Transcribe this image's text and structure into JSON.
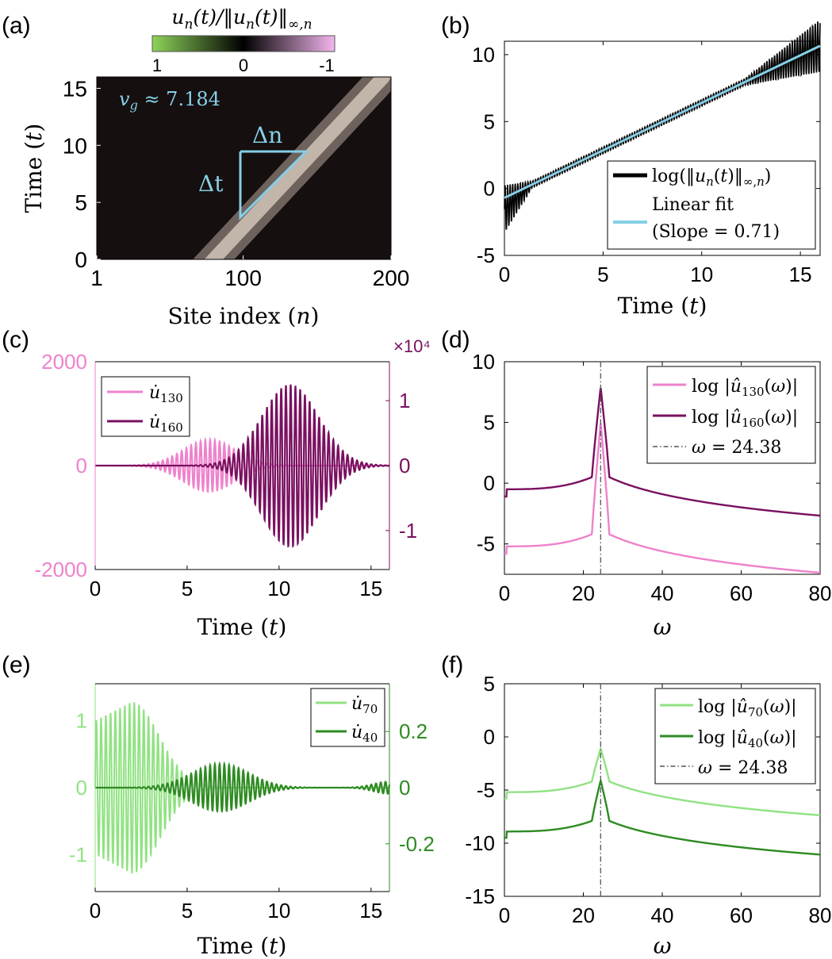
{
  "figure": {
    "panel_labels": [
      "(a)",
      "(b)",
      "(c)",
      "(d)",
      "(e)",
      "(f)"
    ]
  },
  "chart_data": [
    {
      "id": "a",
      "type": "heatmap",
      "title": "u_n(t)/‖u_n(t)‖_{∞,n}",
      "xlabel": "Site index (n)",
      "ylabel": "Time (t)",
      "xticks": [
        "1",
        "100",
        "200"
      ],
      "yticks": [
        "0",
        "5",
        "10",
        "15"
      ],
      "xlim": [
        1,
        200
      ],
      "ylim": [
        0,
        16
      ],
      "colorbar": {
        "ticks": [
          "1",
          "0",
          "-1"
        ],
        "colors": [
          "#8fd45a",
          "#000000",
          "#f4b6ee"
        ]
      },
      "band": {
        "center_at_t0": 80,
        "velocity": 7.184,
        "width": 14
      },
      "annotation_vg": "v_g ≈ 7.184",
      "annotation_dn": "Δn",
      "annotation_dt": "Δt",
      "annotation_color": "#86cfe6"
    },
    {
      "id": "b",
      "type": "line",
      "xlabel": "Time (t)",
      "xticks": [
        "0",
        "5",
        "10",
        "15"
      ],
      "yticks": [
        "-5",
        "0",
        "5",
        "10"
      ],
      "xlim": [
        0,
        16
      ],
      "ylim": [
        -5,
        11
      ],
      "series": [
        {
          "name": "log(‖u_n(t)‖_{∞,n})",
          "color": "#000000",
          "slope": 0.71,
          "intercept": -0.7
        },
        {
          "name": "Linear fit",
          "name2": "(Slope = 0.71)",
          "color": "#86cfe6",
          "slope": 0.71,
          "intercept": -0.7
        }
      ]
    },
    {
      "id": "c",
      "type": "line",
      "xlabel": "Time (t)",
      "xticks": [
        "0",
        "5",
        "10",
        "15"
      ],
      "yticks_left": [
        "2000",
        "0",
        "-2000"
      ],
      "yticks_right": [
        "1",
        "0",
        "-1"
      ],
      "right_exponent": "×10⁴",
      "xlim": [
        0,
        16
      ],
      "ylim_left": [
        -2000,
        2000
      ],
      "ylim_right": [
        -1.6,
        1.6
      ],
      "series": [
        {
          "name": "u̇₁₃₀",
          "color": "#ee82cc",
          "axis": "left",
          "amp": 500,
          "center": 6.2,
          "width": 2.0
        },
        {
          "name": "u̇₁₆₀",
          "color": "#7a1060",
          "axis": "right",
          "amp": 1.25,
          "center": 10.6,
          "width": 2.2
        }
      ]
    },
    {
      "id": "d",
      "type": "line",
      "xlabel": "ω",
      "xticks": [
        "0",
        "20",
        "40",
        "60",
        "80"
      ],
      "yticks": [
        "-5",
        "0",
        "5",
        "10"
      ],
      "xlim": [
        0,
        80
      ],
      "ylim": [
        -7.5,
        10
      ],
      "vline": {
        "x": 24.38,
        "label": "ω = 24.38"
      },
      "series": [
        {
          "name": "log |û₁₃₀(ω)|",
          "color": "#ee82cc",
          "base": -5.2,
          "peak": 5.0
        },
        {
          "name": "log |û₁₆₀(ω)|",
          "color": "#7a1060",
          "base": -0.5,
          "peak": 7.9
        }
      ]
    },
    {
      "id": "e",
      "type": "line",
      "xlabel": "Time (t)",
      "xticks": [
        "0",
        "5",
        "10",
        "15"
      ],
      "yticks_left": [
        "1",
        "0",
        "-1"
      ],
      "yticks_right": [
        "0.2",
        "0",
        "-0.2"
      ],
      "xlim": [
        0,
        16
      ],
      "ylim_left": [
        -1.55,
        1.55
      ],
      "ylim_right": [
        -0.37,
        0.37
      ],
      "series": [
        {
          "name": "u̇₇₀",
          "color": "#90e282",
          "axis": "left",
          "amp": 1.28,
          "center": 2.0,
          "width": 2.1
        },
        {
          "name": "u̇₄₀",
          "color": "#2e8b22",
          "axis": "right",
          "amp": 0.085,
          "center": 6.8,
          "width": 2.2
        }
      ]
    },
    {
      "id": "f",
      "type": "line",
      "xlabel": "ω",
      "xticks": [
        "0",
        "20",
        "40",
        "60",
        "80"
      ],
      "yticks": [
        "-15",
        "-10",
        "-5",
        "0",
        "5"
      ],
      "xlim": [
        0,
        80
      ],
      "ylim": [
        -15,
        5
      ],
      "vline": {
        "x": 24.38,
        "label": "ω = 24.38"
      },
      "series": [
        {
          "name": "log |û₇₀(ω)|",
          "color": "#90e282",
          "base": -5.2,
          "peak": -1.1
        },
        {
          "name": "log |û₄₀(ω)|",
          "color": "#2e8b22",
          "base": -8.9,
          "peak": -4.1
        }
      ]
    }
  ]
}
